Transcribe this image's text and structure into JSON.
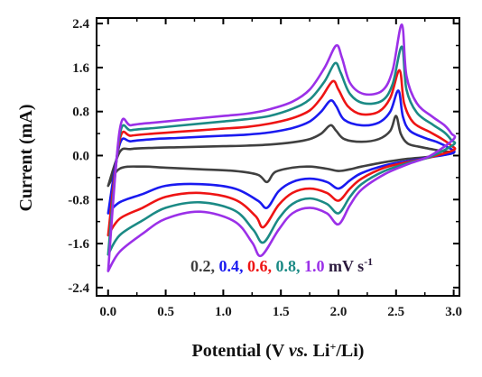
{
  "chart_data": {
    "type": "line",
    "xlabel": {
      "prefix": "Potential (V ",
      "italic": "vs.",
      "mid": " Li",
      "sup": "+",
      "suffix": "/Li)"
    },
    "ylabel": "Current (mA)",
    "xlim": [
      -0.1,
      3.05
    ],
    "ylim": [
      -2.55,
      2.5
    ],
    "xticks": [
      "0.0",
      "0.5",
      "1.0",
      "1.5",
      "2.0",
      "2.5",
      "3.0"
    ],
    "yticks": [
      "-2.4",
      "-1.6",
      "-0.8",
      "0.0",
      "0.8",
      "1.6",
      "2.4"
    ],
    "legend": {
      "labels": [
        "0.2",
        "0.4",
        "0.6",
        "0.8",
        "1.0"
      ],
      "separator": ",",
      "unit_text": "mV s",
      "unit_sup": "-1",
      "position": "bottom-right"
    },
    "series": [
      {
        "name": "0.2",
        "color": "#404040",
        "anodic": [
          [
            0.0,
            -0.55
          ],
          [
            0.1,
            0.06
          ],
          [
            0.2,
            0.12
          ],
          [
            0.4,
            0.14
          ],
          [
            0.6,
            0.15
          ],
          [
            0.8,
            0.16
          ],
          [
            1.0,
            0.17
          ],
          [
            1.2,
            0.18
          ],
          [
            1.4,
            0.2
          ],
          [
            1.6,
            0.24
          ],
          [
            1.75,
            0.3
          ],
          [
            1.85,
            0.4
          ],
          [
            1.93,
            0.55
          ],
          [
            1.98,
            0.45
          ],
          [
            2.05,
            0.3
          ],
          [
            2.2,
            0.25
          ],
          [
            2.35,
            0.3
          ],
          [
            2.45,
            0.45
          ],
          [
            2.5,
            0.72
          ],
          [
            2.54,
            0.4
          ],
          [
            2.6,
            0.22
          ],
          [
            2.7,
            0.16
          ],
          [
            2.8,
            0.12
          ],
          [
            2.9,
            0.08
          ],
          [
            3.0,
            0.05
          ]
        ],
        "cathodic": [
          [
            3.0,
            0.05
          ],
          [
            2.8,
            -0.02
          ],
          [
            2.6,
            -0.06
          ],
          [
            2.4,
            -0.12
          ],
          [
            2.2,
            -0.2
          ],
          [
            2.1,
            -0.25
          ],
          [
            2.0,
            -0.28
          ],
          [
            1.9,
            -0.24
          ],
          [
            1.75,
            -0.2
          ],
          [
            1.6,
            -0.22
          ],
          [
            1.45,
            -0.3
          ],
          [
            1.38,
            -0.48
          ],
          [
            1.3,
            -0.35
          ],
          [
            1.1,
            -0.28
          ],
          [
            0.8,
            -0.25
          ],
          [
            0.5,
            -0.22
          ],
          [
            0.3,
            -0.2
          ],
          [
            0.1,
            -0.24
          ],
          [
            0.0,
            -0.55
          ]
        ]
      },
      {
        "name": "0.4",
        "color": "#1a1af0",
        "anodic": [
          [
            0.0,
            -1.05
          ],
          [
            0.1,
            0.2
          ],
          [
            0.2,
            0.26
          ],
          [
            0.4,
            0.3
          ],
          [
            0.6,
            0.32
          ],
          [
            0.8,
            0.34
          ],
          [
            1.0,
            0.36
          ],
          [
            1.2,
            0.38
          ],
          [
            1.4,
            0.42
          ],
          [
            1.6,
            0.5
          ],
          [
            1.75,
            0.62
          ],
          [
            1.85,
            0.8
          ],
          [
            1.93,
            1.0
          ],
          [
            1.98,
            0.9
          ],
          [
            2.05,
            0.65
          ],
          [
            2.2,
            0.55
          ],
          [
            2.35,
            0.6
          ],
          [
            2.45,
            0.8
          ],
          [
            2.52,
            1.18
          ],
          [
            2.56,
            0.7
          ],
          [
            2.62,
            0.45
          ],
          [
            2.75,
            0.32
          ],
          [
            2.85,
            0.25
          ],
          [
            2.95,
            0.15
          ],
          [
            3.0,
            0.05
          ]
        ],
        "cathodic": [
          [
            3.0,
            0.05
          ],
          [
            2.8,
            -0.03
          ],
          [
            2.6,
            -0.1
          ],
          [
            2.4,
            -0.18
          ],
          [
            2.2,
            -0.32
          ],
          [
            2.1,
            -0.45
          ],
          [
            2.0,
            -0.6
          ],
          [
            1.9,
            -0.48
          ],
          [
            1.75,
            -0.42
          ],
          [
            1.6,
            -0.48
          ],
          [
            1.48,
            -0.65
          ],
          [
            1.38,
            -0.95
          ],
          [
            1.3,
            -0.82
          ],
          [
            1.1,
            -0.6
          ],
          [
            0.8,
            -0.52
          ],
          [
            0.5,
            -0.55
          ],
          [
            0.3,
            -0.7
          ],
          [
            0.1,
            -0.85
          ],
          [
            0.0,
            -1.05
          ]
        ]
      },
      {
        "name": "0.6",
        "color": "#ee1414",
        "anodic": [
          [
            0.0,
            -1.45
          ],
          [
            0.1,
            0.28
          ],
          [
            0.2,
            0.36
          ],
          [
            0.4,
            0.4
          ],
          [
            0.6,
            0.43
          ],
          [
            0.8,
            0.46
          ],
          [
            1.0,
            0.49
          ],
          [
            1.2,
            0.52
          ],
          [
            1.4,
            0.58
          ],
          [
            1.6,
            0.68
          ],
          [
            1.75,
            0.82
          ],
          [
            1.85,
            1.05
          ],
          [
            1.95,
            1.35
          ],
          [
            2.0,
            1.2
          ],
          [
            2.08,
            0.9
          ],
          [
            2.2,
            0.75
          ],
          [
            2.35,
            0.8
          ],
          [
            2.45,
            1.05
          ],
          [
            2.53,
            1.55
          ],
          [
            2.57,
            0.95
          ],
          [
            2.65,
            0.6
          ],
          [
            2.8,
            0.42
          ],
          [
            2.9,
            0.3
          ],
          [
            2.98,
            0.18
          ],
          [
            3.0,
            0.1
          ]
        ],
        "cathodic": [
          [
            3.0,
            0.1
          ],
          [
            2.8,
            -0.03
          ],
          [
            2.6,
            -0.12
          ],
          [
            2.4,
            -0.22
          ],
          [
            2.2,
            -0.42
          ],
          [
            2.1,
            -0.6
          ],
          [
            2.0,
            -0.82
          ],
          [
            1.9,
            -0.68
          ],
          [
            1.75,
            -0.6
          ],
          [
            1.6,
            -0.68
          ],
          [
            1.48,
            -0.9
          ],
          [
            1.35,
            -1.3
          ],
          [
            1.28,
            -1.1
          ],
          [
            1.1,
            -0.8
          ],
          [
            0.8,
            -0.68
          ],
          [
            0.5,
            -0.75
          ],
          [
            0.3,
            -0.95
          ],
          [
            0.1,
            -1.15
          ],
          [
            0.0,
            -1.45
          ]
        ]
      },
      {
        "name": "0.8",
        "color": "#1b8a85",
        "anodic": [
          [
            0.0,
            -1.8
          ],
          [
            0.1,
            0.36
          ],
          [
            0.2,
            0.46
          ],
          [
            0.4,
            0.5
          ],
          [
            0.6,
            0.54
          ],
          [
            0.8,
            0.58
          ],
          [
            1.0,
            0.62
          ],
          [
            1.2,
            0.66
          ],
          [
            1.4,
            0.72
          ],
          [
            1.6,
            0.85
          ],
          [
            1.75,
            1.02
          ],
          [
            1.88,
            1.35
          ],
          [
            1.97,
            1.68
          ],
          [
            2.02,
            1.5
          ],
          [
            2.1,
            1.12
          ],
          [
            2.22,
            0.95
          ],
          [
            2.38,
            1.0
          ],
          [
            2.47,
            1.3
          ],
          [
            2.55,
            1.98
          ],
          [
            2.59,
            1.2
          ],
          [
            2.68,
            0.78
          ],
          [
            2.82,
            0.56
          ],
          [
            2.92,
            0.42
          ],
          [
            2.98,
            0.28
          ],
          [
            3.0,
            0.2
          ]
        ],
        "cathodic": [
          [
            3.0,
            0.2
          ],
          [
            2.8,
            -0.02
          ],
          [
            2.6,
            -0.14
          ],
          [
            2.4,
            -0.28
          ],
          [
            2.2,
            -0.52
          ],
          [
            2.1,
            -0.75
          ],
          [
            2.0,
            -1.05
          ],
          [
            1.9,
            -0.88
          ],
          [
            1.75,
            -0.78
          ],
          [
            1.6,
            -0.88
          ],
          [
            1.48,
            -1.15
          ],
          [
            1.35,
            -1.58
          ],
          [
            1.26,
            -1.35
          ],
          [
            1.1,
            -1.0
          ],
          [
            0.8,
            -0.85
          ],
          [
            0.5,
            -0.95
          ],
          [
            0.3,
            -1.18
          ],
          [
            0.1,
            -1.45
          ],
          [
            0.0,
            -1.8
          ]
        ]
      },
      {
        "name": "1.0",
        "color": "#9b30e8",
        "anodic": [
          [
            0.0,
            -2.1
          ],
          [
            0.1,
            0.45
          ],
          [
            0.2,
            0.55
          ],
          [
            0.4,
            0.6
          ],
          [
            0.6,
            0.64
          ],
          [
            0.8,
            0.68
          ],
          [
            1.0,
            0.72
          ],
          [
            1.2,
            0.76
          ],
          [
            1.4,
            0.84
          ],
          [
            1.6,
            0.98
          ],
          [
            1.75,
            1.2
          ],
          [
            1.88,
            1.6
          ],
          [
            1.98,
            2.0
          ],
          [
            2.03,
            1.78
          ],
          [
            2.1,
            1.32
          ],
          [
            2.22,
            1.12
          ],
          [
            2.38,
            1.18
          ],
          [
            2.47,
            1.55
          ],
          [
            2.55,
            2.38
          ],
          [
            2.59,
            1.45
          ],
          [
            2.68,
            0.95
          ],
          [
            2.82,
            0.7
          ],
          [
            2.92,
            0.55
          ],
          [
            2.98,
            0.4
          ],
          [
            3.0,
            0.3
          ]
        ],
        "cathodic": [
          [
            3.0,
            0.3
          ],
          [
            2.8,
            0.0
          ],
          [
            2.6,
            -0.16
          ],
          [
            2.4,
            -0.34
          ],
          [
            2.2,
            -0.62
          ],
          [
            2.1,
            -0.9
          ],
          [
            2.0,
            -1.25
          ],
          [
            1.9,
            -1.05
          ],
          [
            1.75,
            -0.95
          ],
          [
            1.6,
            -1.05
          ],
          [
            1.48,
            -1.35
          ],
          [
            1.33,
            -1.82
          ],
          [
            1.25,
            -1.58
          ],
          [
            1.1,
            -1.2
          ],
          [
            0.8,
            -1.02
          ],
          [
            0.5,
            -1.15
          ],
          [
            0.3,
            -1.42
          ],
          [
            0.1,
            -1.75
          ],
          [
            0.0,
            -2.1
          ]
        ]
      }
    ]
  }
}
